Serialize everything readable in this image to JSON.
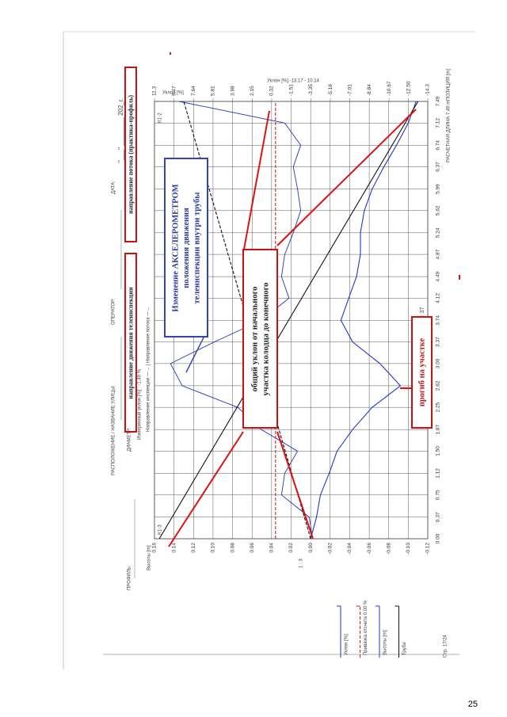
{
  "header": {
    "profile_label": "ПРОФИЛЬ:",
    "street_label": "РАСПОЛОЖЕНИЕ / НАЗВАНИЕ УЛИЦЫ:",
    "operator_label": "ОПЕРАТОР:",
    "date_label": "ДАТА:",
    "date_blank": "\"___\" ________ 202_г.",
    "diameter_label": "ДИАМЕТР:",
    "inspection_direction": "направление движения телеинспекции",
    "flow_direction": "направление потока (практика-профиль)"
  },
  "chart_data": {
    "type": "line",
    "measured_slope": "Измеренный уклон [%] : -1.40 %",
    "direction_note": "Направление инспекции —→  |  Направление потока —→",
    "y2_title": "Уклон [%] -13.17 - 10.14",
    "ylabel": "Высоты [m]",
    "y2label": "Уклон [%]",
    "xlabel": "ПОЗИЦИЯ [m]",
    "length_note": "РАСЧЕТНАЯ ДЛИНА 7.49 m",
    "start_label": "K1-3",
    "end_label": "K1-2",
    "scale_note": "1 : 37",
    "ratio_note": "1 : 3",
    "x": [
      0,
      0.37,
      0.75,
      1.12,
      1.5,
      1.87,
      2.25,
      2.62,
      3,
      3.37,
      3.74,
      4.12,
      4.49,
      4.87,
      5.24,
      5.62,
      5.99,
      6.37,
      6.74,
      7.12,
      7.49
    ],
    "xlim": [
      0,
      7.49
    ],
    "xticks": [
      {
        "value": 0,
        "label": "0.00"
      },
      0.37,
      0.75,
      1.12,
      {
        "value": 1.5,
        "label": "1.50"
      },
      1.87,
      2.25,
      2.62,
      {
        "value": 3,
        "label": "3.00"
      },
      3.37,
      3.74,
      4.12,
      4.49,
      4.87,
      5.24,
      5.62,
      5.99,
      6.37,
      6.74,
      7.12,
      7.49
    ],
    "ylim": [
      -0.12,
      0.16
    ],
    "yticks": [
      0.16,
      0.14,
      0.12,
      {
        "value": 0.1,
        "label": "0.10"
      },
      0.08,
      0.06,
      0.04,
      0.02,
      {
        "value": 0,
        "label": "0.00"
      },
      -0.02,
      -0.04,
      -0.06,
      -0.08,
      {
        "value": -0.1,
        "label": "-0.10"
      },
      -0.12
    ],
    "y2lim": [
      -14.3,
      11.3
    ],
    "y2ticks": [
      11.3,
      9.47,
      7.64,
      5.81,
      3.98,
      2.15,
      0.32,
      -1.51,
      -3.35,
      -5.18,
      -7.01,
      -8.84,
      -10.67,
      {
        "value": -12.5,
        "label": "-12.50"
      },
      -14.3
    ],
    "grid": true,
    "legend": "bottom-left",
    "series": [
      {
        "name": "Уклон [%]",
        "color": "#2233bb",
        "axis": "y2",
        "values": [
          -3.5,
          -3.2,
          -0.6,
          -0.9,
          -2.1,
          1.3,
          3.5,
          8.7,
          9.8,
          5.7,
          1.3,
          -1.3,
          -0.6,
          -0.9,
          -1.7,
          -2.4,
          -2.1,
          -1.7,
          -2.4,
          -0.9,
          9.0
        ]
      },
      {
        "name": "Привязка отсчета 0.00 %",
        "color": "#cc2222",
        "dashed": true,
        "x": [
          0,
          7.49
        ],
        "values": [
          0.036,
          0.036
        ]
      },
      {
        "name": "Высоты [m]",
        "color": "#2233cc",
        "values": [
          0,
          -0.006,
          -0.01,
          -0.019,
          -0.027,
          -0.043,
          -0.063,
          -0.092,
          -0.071,
          -0.043,
          -0.031,
          -0.039,
          -0.047,
          -0.051,
          -0.051,
          -0.055,
          -0.063,
          -0.075,
          -0.088,
          -0.1,
          -0.108
        ]
      },
      {
        "name": "Труба",
        "color": "#111111",
        "x": [
          0,
          7.49
        ],
        "values": [
          0.155,
          -0.11
        ]
      },
      {
        "color": "#111111",
        "dashed": true,
        "x": [
          0,
          7.49
        ],
        "values": [
          0,
          0.13
        ]
      }
    ]
  },
  "annotations": {
    "accelerometer": [
      "Изменение АКСЕЛЕРОМЕТРОМ",
      "положения движения",
      "телеинспекции внутри трубы"
    ],
    "overall_slope": [
      "общий уклон от начального",
      "участка колодца до конечного"
    ],
    "sag": "прогиб на участке"
  },
  "footer": {
    "page_ref": "Стр. 17/24",
    "page_number": "25"
  }
}
